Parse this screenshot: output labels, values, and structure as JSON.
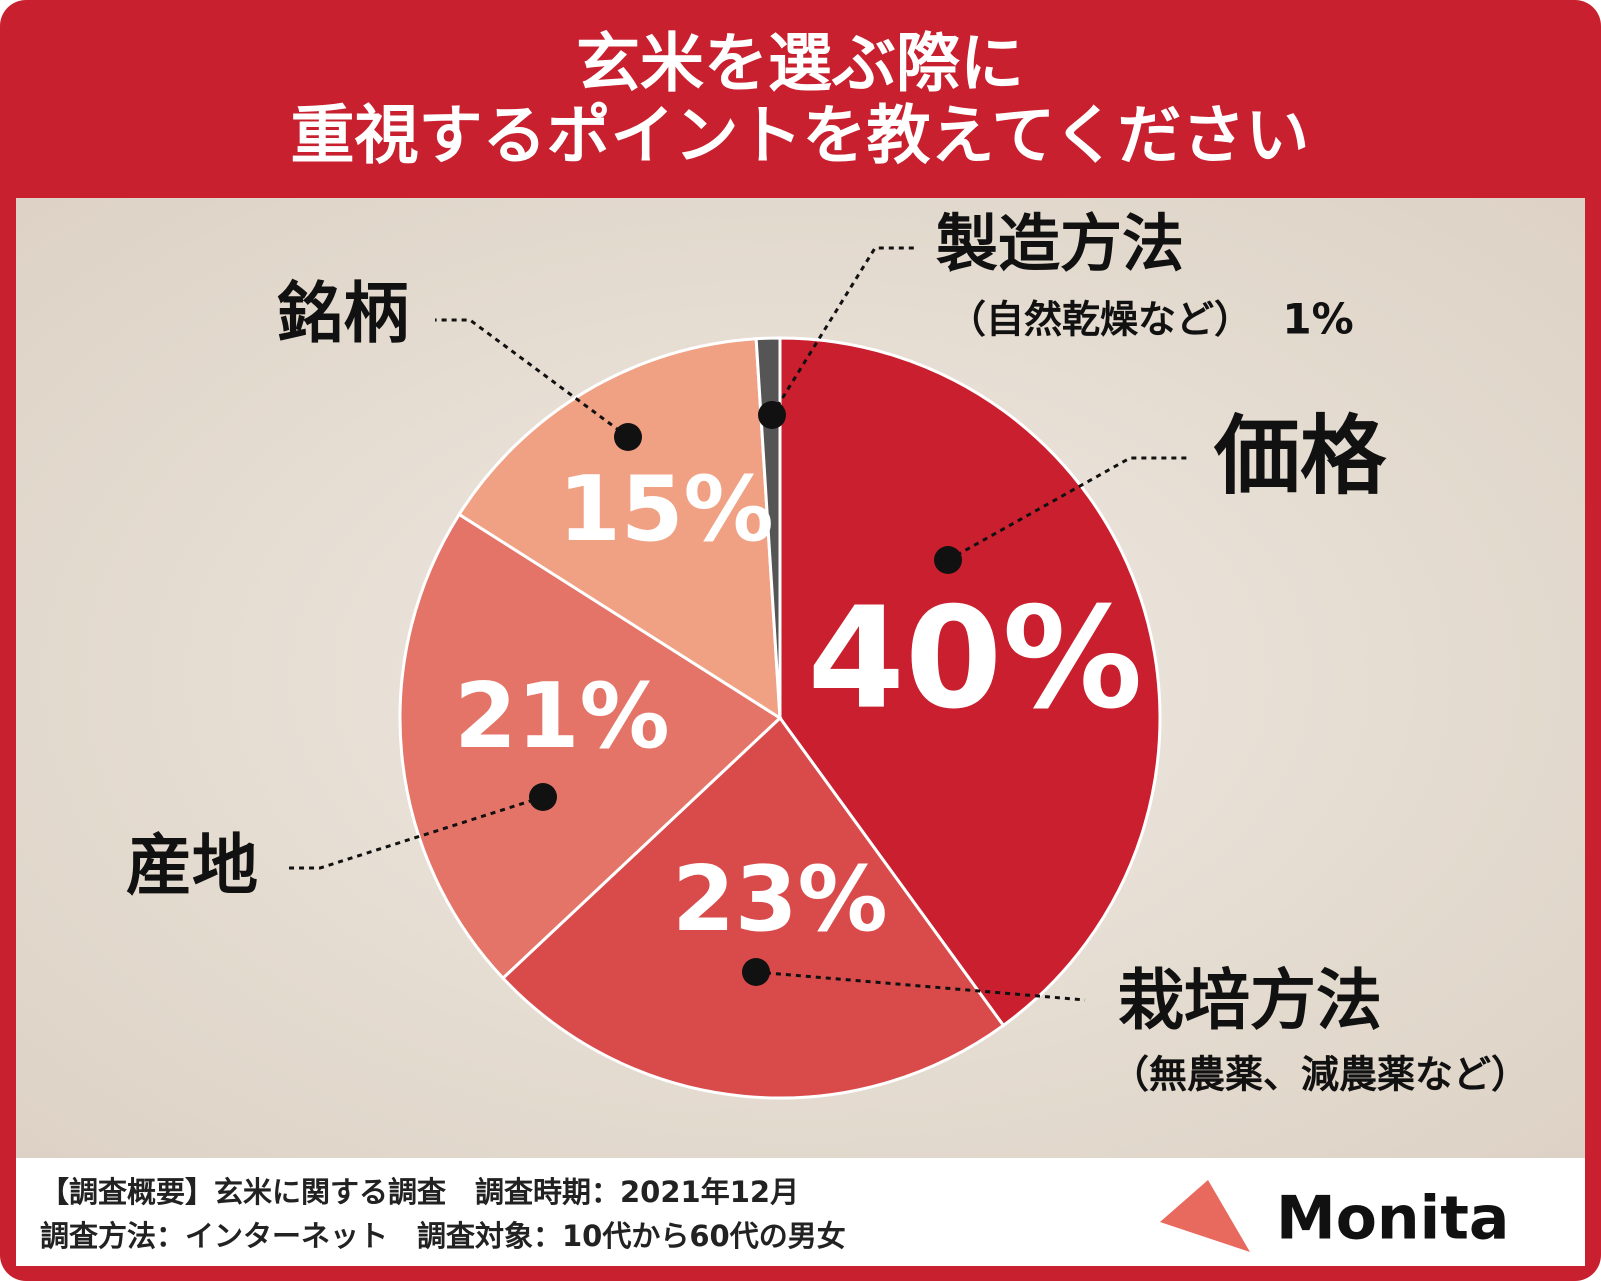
{
  "chart_data": {
    "type": "pie",
    "title": [
      "玄米を選ぶ際に",
      "重視するポイントを教えてください"
    ],
    "categories": [
      "価格",
      "栽培方法",
      "産地",
      "銘柄",
      "製造方法"
    ],
    "sublabels": [
      null,
      "（無農薬、減農薬など）",
      null,
      null,
      "（自然乾燥など）"
    ],
    "values": [
      40,
      23,
      21,
      15,
      1
    ],
    "value_labels": [
      "40%",
      "23%",
      "21%",
      "15%",
      "1%"
    ],
    "colors": [
      "#c91f2e",
      "#d94a4b",
      "#e47467",
      "#f0a184",
      "#555555"
    ]
  },
  "footer": {
    "lines": [
      "【調査概要】玄米に関する調査　調査時期：2021年12月",
      "調査方法：インターネット　調査対象：10代から60代の男女"
    ],
    "logo": "Monita"
  }
}
